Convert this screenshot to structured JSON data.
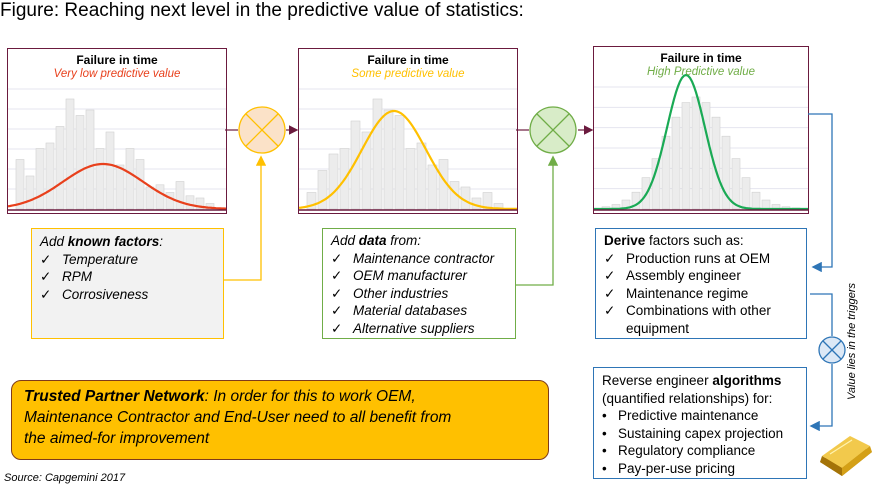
{
  "figure_title": "Figure: Reaching next level in the predictive value of statistics:",
  "colors": {
    "panel_border": "#6b1a3e",
    "curve1": "#e8401c",
    "curve2": "#ffc000",
    "curve3": "#1aaa55",
    "operator1": "#fbe2c8",
    "operator2": "#d8ecc8",
    "operator3": "#dce8f6",
    "connector_yellow": "#ffc000",
    "connector_green": "#70ad47",
    "connector_blue": "#2e75b6",
    "callout_fill": "#ffc000",
    "box1_fill": "#f2f2f2"
  },
  "panels": [
    {
      "title": "Failure in time",
      "subtitle": "Very low predictive value",
      "subtitle_color": "#e8401c",
      "curve_color": "#e8401c"
    },
    {
      "title": "Failure in time",
      "subtitle": "Some predictive value",
      "subtitle_color": "#ffc000",
      "curve_color": "#ffc000"
    },
    {
      "title": "Failure in time",
      "subtitle": "High Predictive value",
      "subtitle_color": "#70ad47",
      "curve_color": "#1aaa55"
    }
  ],
  "known_factors": {
    "prefix": "Add ",
    "bold": "known factors",
    "suffix": ":",
    "items": [
      "Temperature",
      "RPM",
      "Corrosiveness"
    ]
  },
  "data_from": {
    "prefix": "Add ",
    "bold": "data",
    "suffix": " from:",
    "items": [
      "Maintenance contractor",
      "OEM manufacturer",
      "Other industries",
      "Material databases",
      "Alternative suppliers"
    ]
  },
  "derive": {
    "bold": "Derive",
    "suffix": " factors such as:",
    "items": [
      "Production runs at OEM",
      "Assembly engineer",
      "Maintenance regime",
      "Combinations with other",
      "equipment"
    ]
  },
  "algorithms": {
    "prefix": "Reverse engineer ",
    "bold": "algorithms",
    "line2": "(quantified relationships) for:",
    "items": [
      "Predictive maintenance",
      "Sustaining capex projection",
      "Regulatory compliance",
      "Pay-per-use pricing"
    ]
  },
  "trusted": {
    "bold": "Trusted Partner Network",
    "line1_rest": ": In order for this to work OEM,",
    "line2": "Maintenance Contractor and End-User need to all benefit from",
    "line3": "the aimed-for improvement"
  },
  "vertical_note": "Value lies in the triggers",
  "source": "Source: Capgemini 2017",
  "histograms": {
    "panel1": [
      0.45,
      0.3,
      0.55,
      0.6,
      0.75,
      1.0,
      0.85,
      0.9,
      0.55,
      0.7,
      0.4,
      0.55,
      0.45,
      0.2,
      0.22,
      0.15,
      0.25,
      0.12,
      0.1,
      0.05
    ],
    "panel2": [
      0.15,
      0.35,
      0.5,
      0.55,
      0.8,
      0.7,
      1.0,
      0.9,
      0.85,
      0.55,
      0.6,
      0.4,
      0.45,
      0.25,
      0.2,
      0.1,
      0.15,
      0.05
    ],
    "panel3": [
      0.02,
      0.04,
      0.08,
      0.15,
      0.28,
      0.45,
      0.65,
      0.82,
      0.95,
      1.0,
      0.95,
      0.82,
      0.65,
      0.45,
      0.28,
      0.15,
      0.08,
      0.04,
      0.02,
      0.01
    ]
  }
}
